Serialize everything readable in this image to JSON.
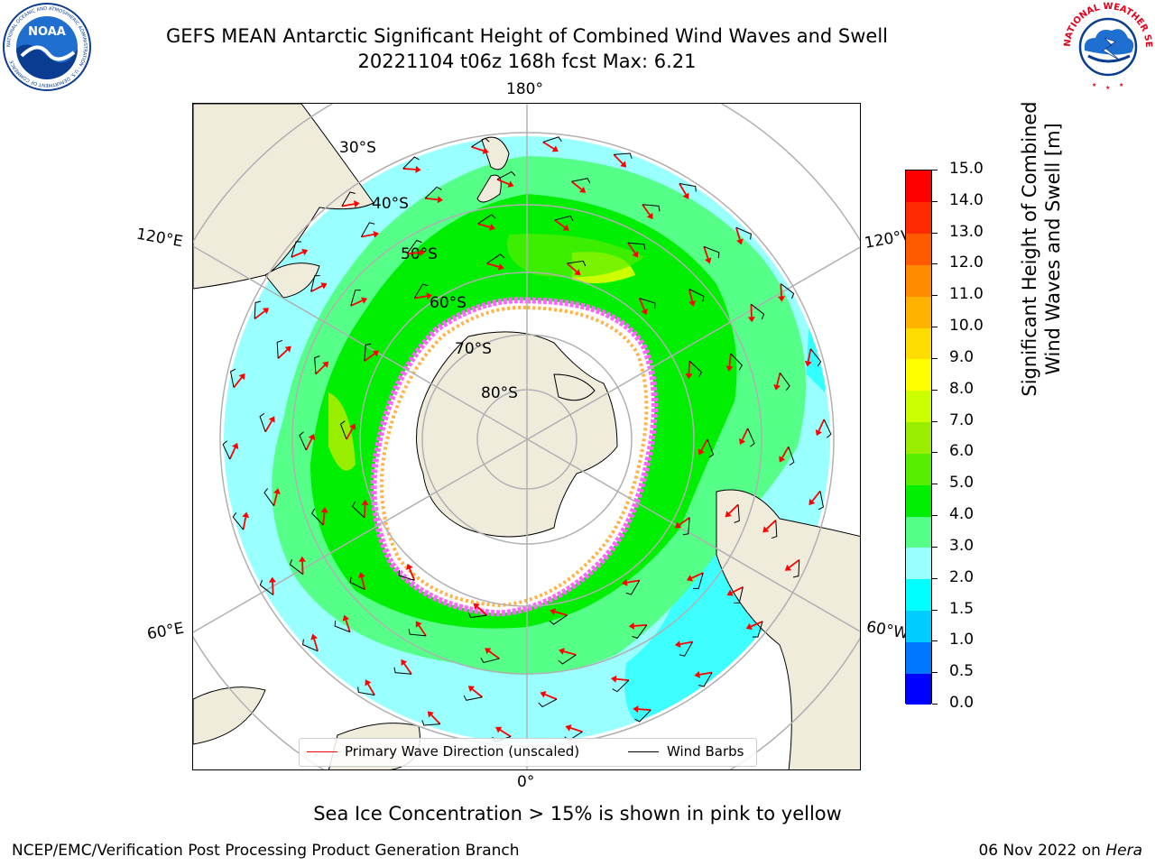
{
  "header": {
    "title_line1": "GEFS MEAN Antarctic Significant Height of Combined Wind Waves and Swell",
    "title_line2": "20221104 t06z 168h fcst   Max: 6.21"
  },
  "logos": {
    "noaa_text": "NOAA",
    "noaa_ring_text": "NATIONAL OCEANIC AND ATMOSPHERIC ADMINISTRATION · U.S. DEPARTMENT OF COMMERCE",
    "nws_ring_text": "NATIONAL WEATHER SERVICE"
  },
  "map": {
    "projection": "south-polar-stereographic",
    "longitude_labels": {
      "top": "180°",
      "bottom": "0°",
      "upper_left": "120°E",
      "lower_left": "60°E",
      "upper_right": "120°W",
      "lower_right": "60°W"
    },
    "latitude_labels": [
      "30°S",
      "40°S",
      "50°S",
      "60°S",
      "70°S",
      "80°S"
    ],
    "colors": {
      "land": "#efecdc",
      "ice_pink": "#ff66ff",
      "ice_magenta": "#cc33cc",
      "ice_orange": "#ffb347",
      "arrow": "#ff0000",
      "barb": "#000000",
      "grid": "#b0b0b0"
    }
  },
  "legend": {
    "primary_wave": "Primary Wave Direction (unscaled)",
    "wind_barbs": "Wind Barbs"
  },
  "colorbar": {
    "title_line1": "Significant Height of Combined",
    "title_line2": "Wind Waves and Swell [m]",
    "ticks": [
      "0.0",
      "0.5",
      "1.0",
      "1.5",
      "2.0",
      "3.0",
      "4.0",
      "5.0",
      "6.0",
      "7.0",
      "8.0",
      "9.0",
      "10.0",
      "11.0",
      "12.0",
      "13.0",
      "14.0",
      "15.0"
    ],
    "colors": [
      "#0000ff",
      "#0077ff",
      "#00ccff",
      "#00ffff",
      "#99ffff",
      "#55ff88",
      "#00ee00",
      "#55ee00",
      "#99ee00",
      "#ccff00",
      "#ffff00",
      "#ffdd00",
      "#ffb300",
      "#ff8c00",
      "#ff5a00",
      "#ff2a00",
      "#ff0000"
    ]
  },
  "notes": {
    "sea_ice": "Sea Ice Concentration > 15% is shown in pink to yellow"
  },
  "footer": {
    "left": "NCEP/EMC/Verification Post Processing Product Generation Branch",
    "right_date": "06 Nov 2022 on ",
    "right_host": "Hera"
  }
}
